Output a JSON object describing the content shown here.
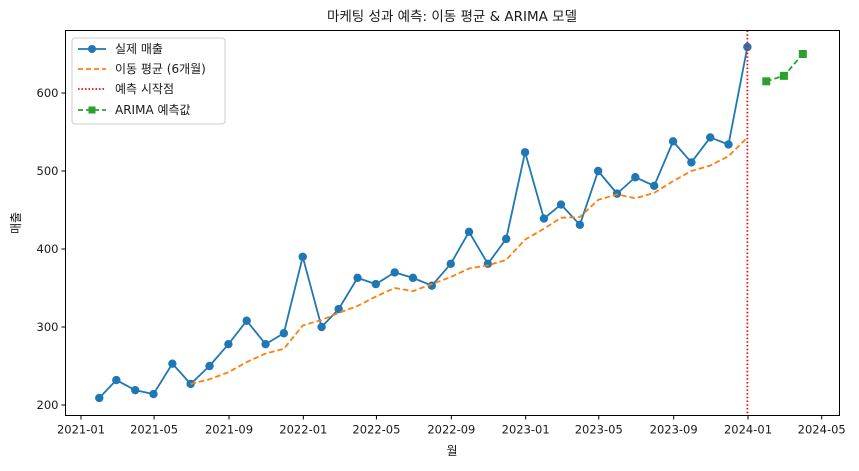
{
  "chart_data": {
    "type": "line",
    "title": "마케팅 성과 예측: 이동 평균 & ARIMA 모델",
    "xlabel": "월",
    "ylabel": "매출",
    "ylim": [
      185,
      680
    ],
    "xlim": [
      "2020-12-15",
      "2024-05-25"
    ],
    "yticks": [
      200,
      300,
      400,
      500,
      600
    ],
    "xticks": [
      "2021-01",
      "2021-05",
      "2021-09",
      "2022-01",
      "2022-05",
      "2022-09",
      "2023-01",
      "2023-05",
      "2023-09",
      "2024-01",
      "2024-05"
    ],
    "grid": false,
    "legend_position": "upper left",
    "x": [
      "2021-01-31",
      "2021-02-28",
      "2021-03-31",
      "2021-04-30",
      "2021-05-31",
      "2021-06-30",
      "2021-07-31",
      "2021-08-31",
      "2021-09-30",
      "2021-10-31",
      "2021-11-30",
      "2021-12-31",
      "2022-01-31",
      "2022-02-28",
      "2022-03-31",
      "2022-04-30",
      "2022-05-31",
      "2022-06-30",
      "2022-07-31",
      "2022-08-31",
      "2022-09-30",
      "2022-10-31",
      "2022-11-30",
      "2022-12-31",
      "2023-01-31",
      "2023-02-28",
      "2023-03-31",
      "2023-04-30",
      "2023-05-31",
      "2023-06-30",
      "2023-07-31",
      "2023-08-31",
      "2023-09-30",
      "2023-10-31",
      "2023-11-30",
      "2023-12-31"
    ],
    "series": [
      {
        "name": "실제 매출",
        "color": "#1f77b4",
        "style": "solid",
        "marker": "circle",
        "values": [
          209,
          232,
          219,
          214,
          253,
          227,
          250,
          278,
          308,
          278,
          292,
          390,
          300,
          323,
          363,
          355,
          370,
          363,
          353,
          381,
          422,
          381,
          413,
          524,
          439,
          457,
          431,
          500,
          471,
          492,
          481,
          538,
          511,
          543,
          534,
          659
        ]
      },
      {
        "name": "이동 평균 (6개월)",
        "color": "#ff7f0e",
        "style": "dashed",
        "marker": "none",
        "values": [
          null,
          null,
          null,
          null,
          null,
          227,
          233,
          242,
          255,
          266,
          272,
          302,
          309,
          318,
          327,
          339,
          350,
          346,
          355,
          364,
          375,
          379,
          386,
          412,
          426,
          440,
          441,
          463,
          470,
          465,
          472,
          487,
          500,
          507,
          519,
          543
        ]
      },
      {
        "name": "ARIMA 예측값",
        "color": "#2ca02c",
        "style": "dashed",
        "marker": "square",
        "x": [
          "2024-01-31",
          "2024-02-29",
          "2024-03-31"
        ],
        "values": [
          615,
          622,
          650
        ]
      }
    ],
    "annotations": [
      {
        "type": "vline",
        "name": "예측 시작점",
        "x": "2023-12-31",
        "color": "#ff0000",
        "style": "dotted"
      }
    ]
  },
  "legend": {
    "items": [
      {
        "label": "실제 매출",
        "color": "#1f77b4",
        "style": "solid",
        "marker": "circle"
      },
      {
        "label": "이동 평균 (6개월)",
        "color": "#ff7f0e",
        "style": "dashed",
        "marker": "none"
      },
      {
        "label": "예측 시작점",
        "color": "#ff0000",
        "style": "dotted",
        "marker": "none"
      },
      {
        "label": "ARIMA 예측값",
        "color": "#2ca02c",
        "style": "dashed",
        "marker": "square"
      }
    ]
  }
}
